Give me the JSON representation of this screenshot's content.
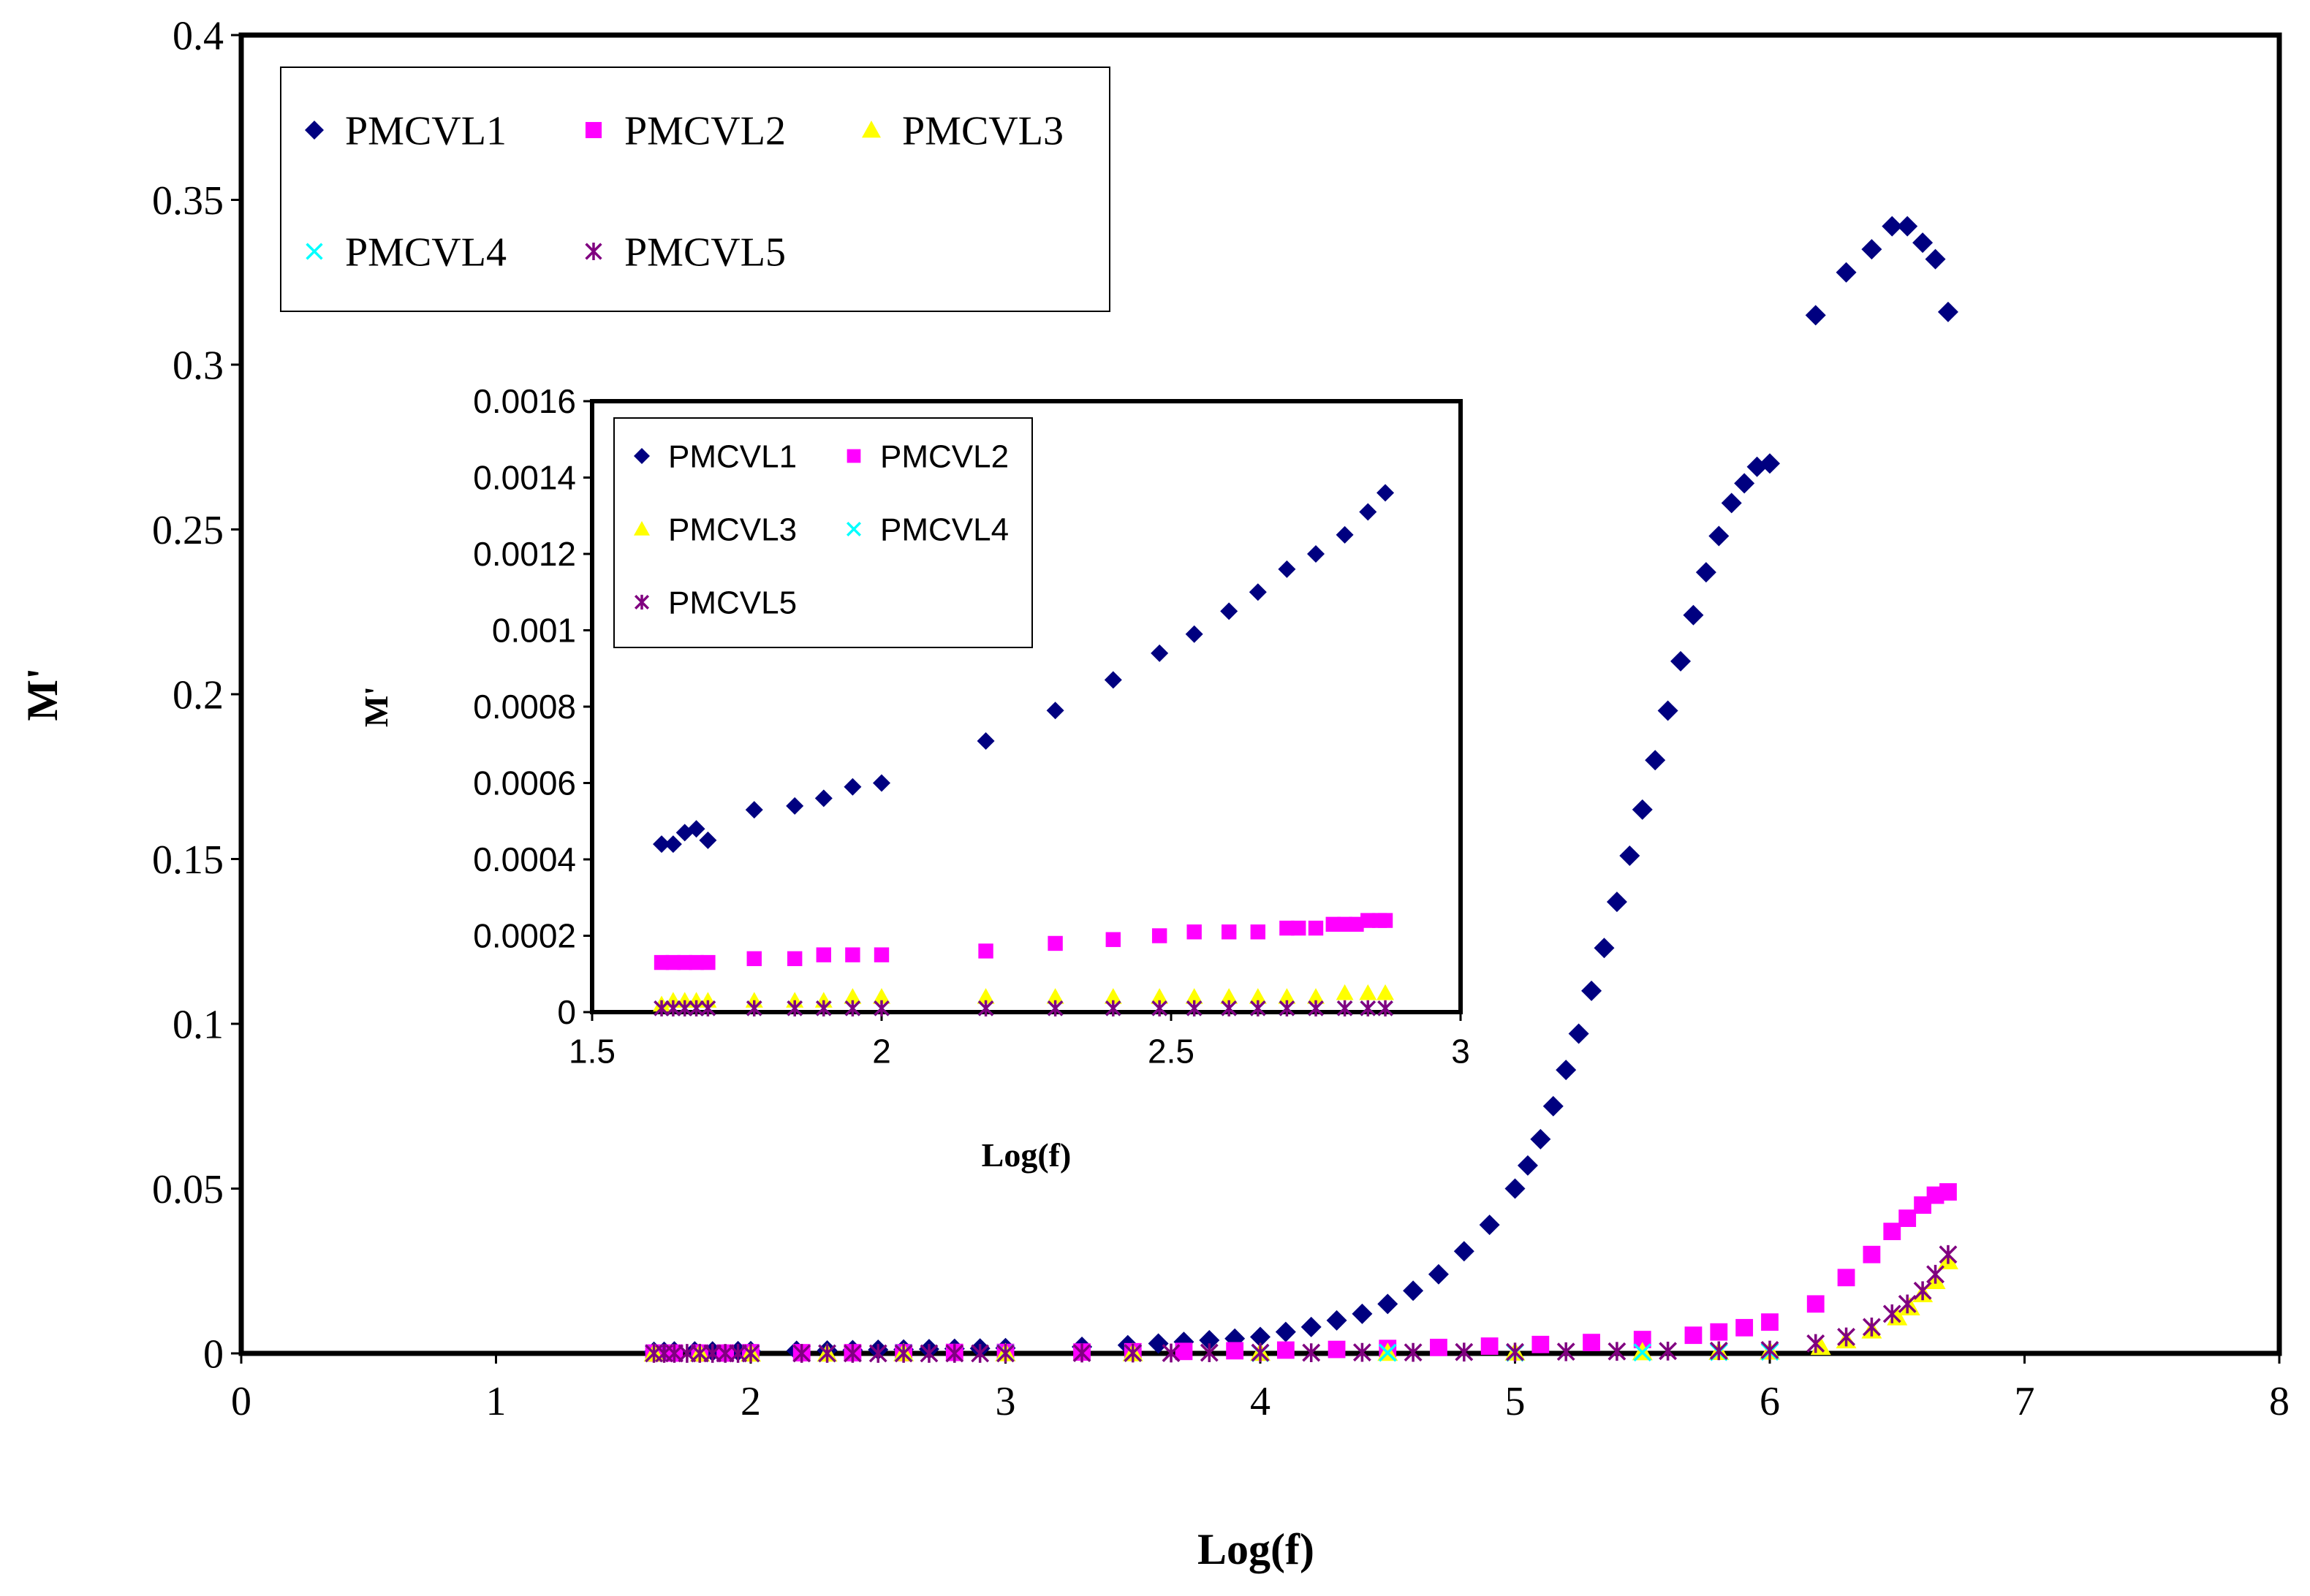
{
  "chart_data": [
    {
      "type": "scatter",
      "role": "main",
      "xlabel": "Log(f)",
      "ylabel": "M'",
      "xlim": [
        0,
        8
      ],
      "ylim": [
        0,
        0.4
      ],
      "xticks": [
        0,
        1,
        2,
        3,
        4,
        5,
        6,
        7,
        8
      ],
      "yticks": [
        0,
        0.05,
        0.1,
        0.15,
        0.2,
        0.25,
        0.3,
        0.35,
        0.4
      ],
      "xtick_labels": [
        "0",
        "1",
        "2",
        "3",
        "4",
        "5",
        "6",
        "7",
        "8"
      ],
      "ytick_labels": [
        "0",
        "0.05",
        "0.1",
        "0.15",
        "0.2",
        "0.25",
        "0.3",
        "0.35",
        "0.4"
      ],
      "legend": [
        "PMCVL1",
        "PMCVL2",
        "PMCVL3",
        "PMCVL4",
        "PMCVL5"
      ],
      "legend_position": "top-left",
      "series": [
        {
          "name": "PMCVL1",
          "color": "#000080",
          "marker": "diamond",
          "x": [
            1.62,
            1.66,
            1.7,
            1.78,
            1.85,
            1.95,
            2.0,
            2.18,
            2.3,
            2.4,
            2.5,
            2.6,
            2.7,
            2.8,
            2.9,
            3.0,
            3.3,
            3.48,
            3.6,
            3.7,
            3.8,
            3.9,
            4.0,
            4.1,
            4.2,
            4.3,
            4.4,
            4.5,
            4.6,
            4.7,
            4.8,
            4.9,
            5.0,
            5.05,
            5.1,
            5.15,
            5.2,
            5.25,
            5.3,
            5.35,
            5.4,
            5.45,
            5.5,
            5.55,
            5.6,
            5.65,
            5.7,
            5.75,
            5.8,
            5.85,
            5.9,
            5.95,
            6.0,
            6.18,
            6.3,
            6.4,
            6.48,
            6.54,
            6.6,
            6.65,
            6.7
          ],
          "y": [
            0.0005,
            0.0005,
            0.0006,
            0.0006,
            0.0006,
            0.0007,
            0.0007,
            0.0008,
            0.0009,
            0.001,
            0.0011,
            0.0012,
            0.0013,
            0.0014,
            0.0015,
            0.0016,
            0.002,
            0.0025,
            0.003,
            0.0035,
            0.004,
            0.0045,
            0.005,
            0.0065,
            0.008,
            0.01,
            0.012,
            0.015,
            0.019,
            0.024,
            0.031,
            0.039,
            0.05,
            0.057,
            0.065,
            0.075,
            0.086,
            0.097,
            0.11,
            0.123,
            0.137,
            0.151,
            0.165,
            0.18,
            0.195,
            0.21,
            0.224,
            0.237,
            0.248,
            0.258,
            0.264,
            0.269,
            0.27,
            0.315,
            0.328,
            0.335,
            0.342,
            0.342,
            0.337,
            0.332,
            0.316
          ]
        },
        {
          "name": "PMCVL2",
          "color": "#FF00FF",
          "marker": "square",
          "x": [
            1.62,
            1.7,
            1.8,
            1.9,
            2.0,
            2.2,
            2.4,
            2.6,
            2.8,
            3.0,
            3.3,
            3.5,
            3.7,
            3.9,
            4.1,
            4.3,
            4.5,
            4.7,
            4.9,
            5.1,
            5.3,
            5.5,
            5.7,
            5.8,
            5.9,
            6.0,
            6.18,
            6.3,
            6.4,
            6.48,
            6.54,
            6.6,
            6.65,
            6.7
          ],
          "y": [
            0.0001,
            0.0001,
            0.0001,
            0.0001,
            0.0002,
            0.0002,
            0.0002,
            0.0002,
            0.0003,
            0.0003,
            0.0004,
            0.0005,
            0.0006,
            0.0008,
            0.001,
            0.0012,
            0.0015,
            0.0018,
            0.0022,
            0.0027,
            0.0033,
            0.0042,
            0.0055,
            0.0065,
            0.0078,
            0.0095,
            0.015,
            0.023,
            0.03,
            0.037,
            0.041,
            0.045,
            0.048,
            0.049
          ]
        },
        {
          "name": "PMCVL3",
          "color": "#FFFF00",
          "marker": "triangle",
          "x": [
            1.62,
            1.8,
            2.0,
            2.3,
            2.6,
            3.0,
            3.5,
            4.0,
            4.5,
            5.0,
            5.5,
            5.8,
            6.0,
            6.2,
            6.3,
            6.4,
            6.5,
            6.55,
            6.6,
            6.65,
            6.7
          ],
          "y": [
            0,
            0,
            0,
            0,
            0.0001,
            0.0001,
            0.0001,
            0.0002,
            0.0002,
            0.0003,
            0.0004,
            0.0005,
            0.0006,
            0.002,
            0.004,
            0.007,
            0.011,
            0.014,
            0.018,
            0.022,
            0.028
          ]
        },
        {
          "name": "PMCVL4",
          "color": "#00FFFF",
          "marker": "x",
          "x": [
            1.62,
            1.8,
            2.0,
            2.3,
            2.6,
            3.0,
            3.5,
            4.0,
            4.5,
            5.0,
            5.5,
            5.8,
            6.0
          ],
          "y": [
            0,
            0,
            0,
            0,
            0.0001,
            0.0001,
            0.0001,
            0.0001,
            0.0002,
            0.0002,
            0.0003,
            0.0004,
            0.0005
          ]
        },
        {
          "name": "PMCVL5",
          "color": "#800080",
          "marker": "star",
          "x": [
            1.62,
            1.66,
            1.7,
            1.75,
            1.8,
            1.85,
            1.9,
            1.95,
            2.0,
            2.2,
            2.3,
            2.4,
            2.5,
            2.6,
            2.7,
            2.8,
            2.9,
            3.0,
            3.3,
            3.5,
            3.65,
            3.8,
            4.0,
            4.2,
            4.4,
            4.6,
            4.8,
            5.0,
            5.2,
            5.4,
            5.6,
            5.8,
            6.0,
            6.18,
            6.3,
            6.4,
            6.48,
            6.54,
            6.6,
            6.65,
            6.7
          ],
          "y": [
            0,
            0,
            0,
            0,
            0,
            0,
            0,
            0,
            0,
            0,
            0,
            0,
            0,
            0,
            0,
            0,
            0,
            0,
            0.0001,
            0.0001,
            0.0001,
            0.0002,
            0.0002,
            0.0002,
            0.0003,
            0.0003,
            0.0004,
            0.0004,
            0.0005,
            0.0006,
            0.0007,
            0.0008,
            0.001,
            0.003,
            0.005,
            0.008,
            0.012,
            0.015,
            0.019,
            0.024,
            0.03
          ]
        }
      ]
    },
    {
      "type": "scatter",
      "role": "inset",
      "xlabel": "Log(f)",
      "ylabel": "M'",
      "xlim": [
        1.5,
        3
      ],
      "ylim": [
        0,
        0.0016
      ],
      "xticks": [
        1.5,
        2,
        2.5,
        3
      ],
      "yticks": [
        0,
        0.0002,
        0.0004,
        0.0006,
        0.0008,
        0.001,
        0.0012,
        0.0014,
        0.0016
      ],
      "xtick_labels": [
        "1.5",
        "2",
        "2.5",
        "3"
      ],
      "ytick_labels": [
        "0",
        "0.0002",
        "0.0004",
        "0.0006",
        "0.0008",
        "0.001",
        "0.0012",
        "0.0014",
        "0.0016"
      ],
      "legend": [
        "PMCVL1",
        "PMCVL2",
        "PMCVL3",
        "PMCVL4",
        "PMCVL5"
      ],
      "legend_position": "top-left",
      "series": [
        {
          "name": "PMCVL1",
          "color": "#000080",
          "marker": "diamond",
          "x": [
            1.62,
            1.64,
            1.66,
            1.68,
            1.7,
            1.78,
            1.85,
            1.9,
            1.95,
            2.0,
            2.18,
            2.3,
            2.4,
            2.48,
            2.54,
            2.6,
            2.65,
            2.7,
            2.75,
            2.8,
            2.84,
            2.87
          ],
          "y": [
            0.00044,
            0.00044,
            0.00047,
            0.00048,
            0.00045,
            0.00053,
            0.00054,
            0.00056,
            0.00059,
            0.0006,
            0.00071,
            0.00079,
            0.00087,
            0.00094,
            0.00099,
            0.00105,
            0.0011,
            0.00116,
            0.0012,
            0.00125,
            0.00131,
            0.00136
          ]
        },
        {
          "name": "PMCVL2",
          "color": "#FF00FF",
          "marker": "square",
          "x": [
            1.62,
            1.64,
            1.66,
            1.68,
            1.7,
            1.78,
            1.85,
            1.9,
            1.95,
            2.0,
            2.18,
            2.3,
            2.4,
            2.48,
            2.54,
            2.6,
            2.65,
            2.7,
            2.72,
            2.75,
            2.78,
            2.8,
            2.82,
            2.84,
            2.86,
            2.87
          ],
          "y": [
            0.00013,
            0.00013,
            0.00013,
            0.00013,
            0.00013,
            0.00014,
            0.00014,
            0.00015,
            0.00015,
            0.00015,
            0.00016,
            0.00018,
            0.00019,
            0.0002,
            0.00021,
            0.00021,
            0.00021,
            0.00022,
            0.00022,
            0.00022,
            0.00023,
            0.00023,
            0.00023,
            0.00024,
            0.00024,
            0.00024
          ]
        },
        {
          "name": "PMCVL3",
          "color": "#FFFF00",
          "marker": "triangle",
          "x": [
            1.62,
            1.64,
            1.66,
            1.68,
            1.7,
            1.78,
            1.85,
            1.9,
            1.95,
            2.0,
            2.18,
            2.3,
            2.4,
            2.48,
            2.54,
            2.6,
            2.65,
            2.7,
            2.75,
            2.8,
            2.84,
            2.87
          ],
          "y": [
            2e-05,
            3e-05,
            3e-05,
            3e-05,
            3e-05,
            3e-05,
            3e-05,
            3e-05,
            4e-05,
            4e-05,
            4e-05,
            4e-05,
            4e-05,
            4e-05,
            4e-05,
            4e-05,
            4e-05,
            4e-05,
            4e-05,
            5e-05,
            5e-05,
            5e-05
          ]
        },
        {
          "name": "PMCVL4",
          "color": "#00FFFF",
          "marker": "x",
          "x": [
            1.62,
            1.64,
            1.66,
            1.68,
            1.7,
            1.78,
            1.85,
            1.9,
            1.95,
            2.0,
            2.18,
            2.3,
            2.4,
            2.48,
            2.54,
            2.6,
            2.65,
            2.7,
            2.75,
            2.8,
            2.84,
            2.87
          ],
          "y": [
            1e-05,
            1e-05,
            1e-05,
            1e-05,
            1e-05,
            1e-05,
            1e-05,
            1e-05,
            1e-05,
            1e-05,
            1e-05,
            1e-05,
            1e-05,
            1e-05,
            1e-05,
            1e-05,
            1e-05,
            1e-05,
            1e-05,
            1e-05,
            1e-05,
            1e-05
          ]
        },
        {
          "name": "PMCVL5",
          "color": "#800080",
          "marker": "star",
          "x": [
            1.62,
            1.64,
            1.66,
            1.68,
            1.7,
            1.78,
            1.85,
            1.9,
            1.95,
            2.0,
            2.18,
            2.3,
            2.4,
            2.48,
            2.54,
            2.6,
            2.65,
            2.7,
            2.75,
            2.8,
            2.84,
            2.87
          ],
          "y": [
            1e-05,
            1e-05,
            1e-05,
            1e-05,
            1e-05,
            1e-05,
            1e-05,
            1e-05,
            1e-05,
            1e-05,
            1e-05,
            1e-05,
            1e-05,
            1e-05,
            1e-05,
            1e-05,
            1e-05,
            1e-05,
            1e-05,
            1e-05,
            1e-05,
            1e-05
          ]
        }
      ]
    }
  ]
}
